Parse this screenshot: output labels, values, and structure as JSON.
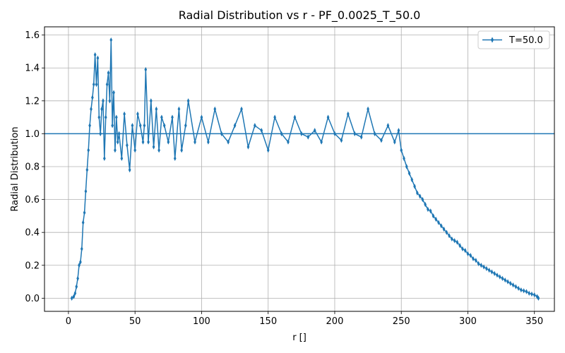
{
  "chart_data": {
    "type": "line",
    "title": "Radial Distribution vs r - PF_0.0025_T_50.0",
    "xlabel": "r []",
    "ylabel": "Radial Distribution",
    "xlim": [
      -18,
      365
    ],
    "ylim": [
      -0.08,
      1.65
    ],
    "xticks": [
      0,
      50,
      100,
      150,
      200,
      250,
      300,
      350
    ],
    "yticks": [
      0.0,
      0.2,
      0.4,
      0.6,
      0.8,
      1.0,
      1.2,
      1.4,
      1.6
    ],
    "ytick_labels": [
      "0.0",
      "0.2",
      "0.4",
      "0.6",
      "0.8",
      "1.0",
      "1.2",
      "1.4",
      "1.6"
    ],
    "grid": true,
    "legend": {
      "position": "top-right",
      "entries": [
        "T=50.0"
      ]
    },
    "reference_line": {
      "y": 1.0,
      "color": "#1f77b4"
    },
    "series": [
      {
        "name": "T=50.0",
        "color": "#1f77b4",
        "marker": "thin-diamond",
        "x": [
          2.5,
          4,
          5,
          6,
          7,
          8,
          9,
          10,
          11,
          12,
          13,
          14,
          15,
          16,
          17,
          18,
          19,
          20,
          21,
          22,
          23,
          24,
          25,
          26,
          27,
          28,
          29,
          30,
          31,
          32,
          33,
          34,
          35,
          36,
          37,
          38,
          40,
          42,
          44,
          46,
          48,
          50,
          52,
          54,
          56,
          57,
          58,
          60,
          62,
          64,
          66,
          68,
          70,
          72,
          75,
          78,
          80,
          83,
          85,
          88,
          90,
          95,
          100,
          105,
          110,
          115,
          120,
          125,
          130,
          135,
          140,
          145,
          150,
          155,
          160,
          165,
          170,
          175,
          180,
          185,
          190,
          195,
          200,
          205,
          210,
          215,
          220,
          225,
          230,
          235,
          240,
          245,
          248,
          250,
          252,
          254,
          256,
          258,
          260,
          262,
          264,
          266,
          268,
          270,
          272,
          274,
          276,
          278,
          280,
          282,
          284,
          286,
          288,
          290,
          292,
          294,
          296,
          298,
          300,
          302,
          304,
          306,
          308,
          310,
          312,
          314,
          316,
          318,
          320,
          322,
          324,
          326,
          328,
          330,
          332,
          334,
          336,
          338,
          340,
          342,
          344,
          346,
          348,
          350,
          352,
          353
        ],
        "values": [
          0.0,
          0.01,
          0.03,
          0.07,
          0.12,
          0.2,
          0.22,
          0.3,
          0.46,
          0.52,
          0.65,
          0.78,
          0.9,
          1.05,
          1.15,
          1.22,
          1.3,
          1.48,
          1.3,
          1.46,
          1.1,
          1.0,
          1.15,
          1.2,
          0.85,
          1.1,
          1.3,
          1.37,
          1.2,
          1.57,
          1.05,
          1.25,
          0.9,
          1.1,
          0.95,
          1.0,
          0.85,
          1.12,
          0.93,
          0.78,
          1.05,
          0.9,
          1.12,
          1.05,
          0.95,
          1.05,
          1.39,
          0.95,
          1.2,
          0.92,
          1.15,
          0.9,
          1.1,
          1.05,
          0.95,
          1.1,
          0.85,
          1.15,
          0.9,
          1.05,
          1.2,
          0.95,
          1.1,
          0.95,
          1.15,
          1.0,
          0.95,
          1.05,
          1.15,
          0.92,
          1.05,
          1.02,
          0.9,
          1.1,
          1.0,
          0.95,
          1.1,
          1.0,
          0.98,
          1.02,
          0.95,
          1.1,
          1.0,
          0.96,
          1.12,
          1.0,
          0.98,
          1.15,
          1.0,
          0.96,
          1.05,
          0.95,
          1.02,
          0.9,
          0.85,
          0.8,
          0.76,
          0.72,
          0.68,
          0.64,
          0.62,
          0.6,
          0.57,
          0.54,
          0.53,
          0.5,
          0.48,
          0.46,
          0.44,
          0.42,
          0.4,
          0.38,
          0.36,
          0.35,
          0.34,
          0.32,
          0.3,
          0.29,
          0.27,
          0.26,
          0.24,
          0.23,
          0.21,
          0.2,
          0.19,
          0.18,
          0.17,
          0.16,
          0.15,
          0.14,
          0.13,
          0.12,
          0.11,
          0.1,
          0.09,
          0.08,
          0.07,
          0.06,
          0.05,
          0.045,
          0.04,
          0.03,
          0.025,
          0.02,
          0.01,
          0.0
        ]
      }
    ]
  }
}
